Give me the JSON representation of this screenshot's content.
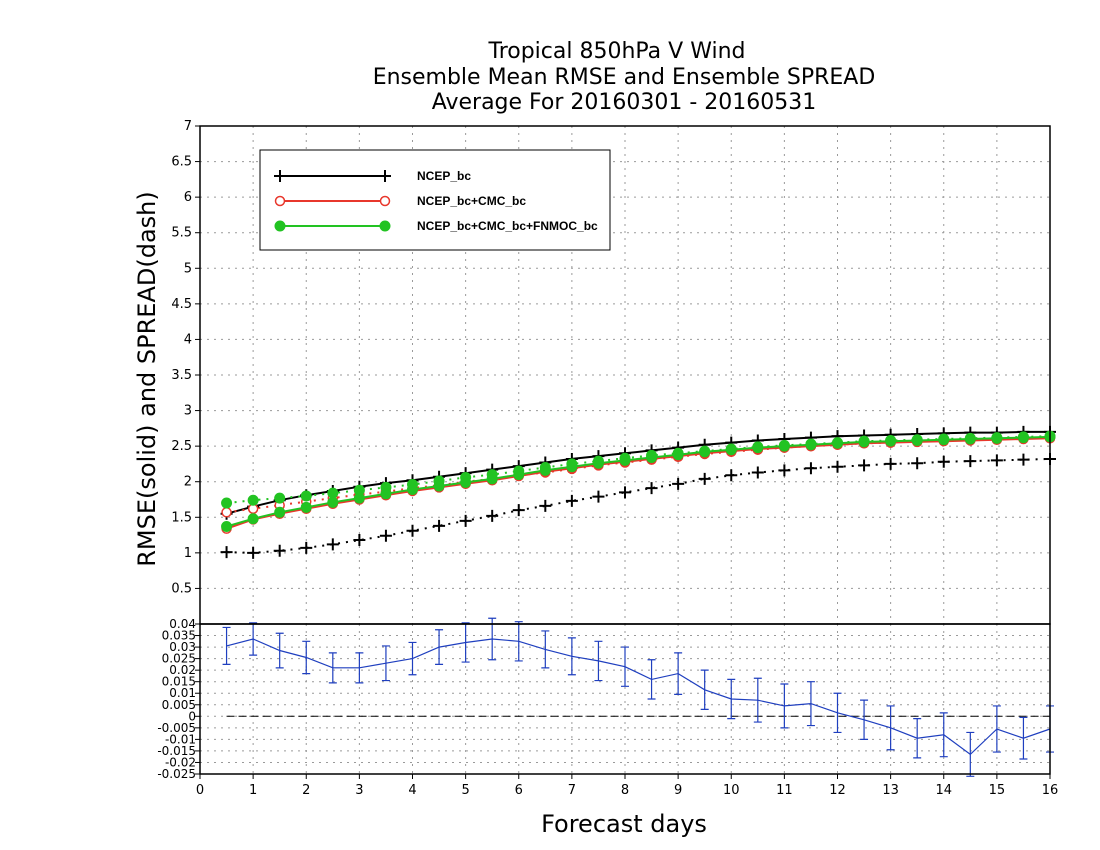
{
  "chart_data": [
    {
      "type": "line",
      "title": [
        "Tropical 850hPa V Wind",
        "Ensemble Mean RMSE and Ensemble SPREAD",
        "Average For 20160301 - 20160531"
      ],
      "ylabel": "RMSE(solid)  and  SPREAD(dash)",
      "ylim": [
        0,
        7
      ],
      "yticks": [
        "0.5",
        "1",
        "1.5",
        "2",
        "2.5",
        "3",
        "3.5",
        "4",
        "4.5",
        "5",
        "5.5",
        "6",
        "6.5",
        "7"
      ],
      "ytick_values": [
        0.5,
        1,
        1.5,
        2,
        2.5,
        3,
        3.5,
        4,
        4.5,
        5,
        5.5,
        6,
        6.5,
        7
      ],
      "xlim": [
        0,
        16
      ],
      "grid": true,
      "legend_position": "top-left",
      "x": [
        0.5,
        1,
        1.5,
        2,
        2.5,
        3,
        3.5,
        4,
        4.5,
        5,
        5.5,
        6,
        6.5,
        7,
        7.5,
        8,
        8.5,
        9,
        9.5,
        10,
        10.5,
        11,
        11.5,
        12,
        12.5,
        13,
        13.5,
        14,
        14.5,
        15,
        15.5,
        16
      ],
      "series": [
        {
          "name": "NCEP_bc",
          "color": "#000000",
          "marker": "plus",
          "rmse": [
            1.55,
            1.65,
            1.74,
            1.81,
            1.87,
            1.93,
            1.98,
            2.02,
            2.07,
            2.12,
            2.17,
            2.22,
            2.27,
            2.32,
            2.36,
            2.4,
            2.44,
            2.48,
            2.52,
            2.55,
            2.58,
            2.6,
            2.62,
            2.64,
            2.65,
            2.66,
            2.67,
            2.68,
            2.69,
            2.69,
            2.7,
            2.7
          ],
          "spread": [
            1.01,
            1.0,
            1.03,
            1.07,
            1.12,
            1.18,
            1.24,
            1.31,
            1.38,
            1.45,
            1.52,
            1.6,
            1.66,
            1.73,
            1.79,
            1.85,
            1.91,
            1.97,
            2.04,
            2.09,
            2.13,
            2.16,
            2.19,
            2.21,
            2.23,
            2.25,
            2.26,
            2.28,
            2.29,
            2.3,
            2.31,
            2.32
          ]
        },
        {
          "name": "NCEP_bc+CMC_bc",
          "color": "#e8372c",
          "marker": "open-circle",
          "rmse": [
            1.34,
            1.47,
            1.55,
            1.62,
            1.69,
            1.75,
            1.81,
            1.87,
            1.92,
            1.97,
            2.02,
            2.08,
            2.14,
            2.19,
            2.24,
            2.28,
            2.32,
            2.36,
            2.4,
            2.43,
            2.46,
            2.48,
            2.5,
            2.52,
            2.54,
            2.55,
            2.56,
            2.57,
            2.58,
            2.59,
            2.6,
            2.61
          ],
          "spread": [
            1.57,
            1.62,
            1.67,
            1.72,
            1.77,
            1.82,
            1.86,
            1.91,
            1.95,
            2.0,
            2.04,
            2.09,
            2.13,
            2.18,
            2.23,
            2.27,
            2.31,
            2.35,
            2.39,
            2.42,
            2.45,
            2.48,
            2.5,
            2.52,
            2.54,
            2.55,
            2.57,
            2.58,
            2.59,
            2.6,
            2.61,
            2.62
          ]
        },
        {
          "name": "NCEP_bc+CMC_bc+FNMOC_bc",
          "color": "#22c322",
          "marker": "filled-circle",
          "rmse": [
            1.37,
            1.48,
            1.57,
            1.64,
            1.71,
            1.77,
            1.83,
            1.89,
            1.94,
            1.99,
            2.04,
            2.1,
            2.16,
            2.21,
            2.26,
            2.3,
            2.34,
            2.38,
            2.42,
            2.45,
            2.48,
            2.5,
            2.52,
            2.54,
            2.56,
            2.57,
            2.58,
            2.59,
            2.6,
            2.61,
            2.62,
            2.63
          ],
          "spread": [
            1.7,
            1.74,
            1.77,
            1.8,
            1.84,
            1.88,
            1.92,
            1.96,
            2.01,
            2.06,
            2.1,
            2.15,
            2.2,
            2.25,
            2.29,
            2.33,
            2.37,
            2.4,
            2.43,
            2.46,
            2.49,
            2.51,
            2.53,
            2.55,
            2.57,
            2.58,
            2.59,
            2.6,
            2.61,
            2.62,
            2.63,
            2.64
          ]
        }
      ]
    },
    {
      "type": "line",
      "ylim": [
        -0.025,
        0.04
      ],
      "yticks": [
        "-0.025",
        "-0.02",
        "-0.015",
        "-0.01",
        "-0.005",
        "0",
        "0.005",
        "0.01",
        "0.015",
        "0.02",
        "0.025",
        "0.03",
        "0.035",
        "0.04"
      ],
      "ytick_values": [
        -0.025,
        -0.02,
        -0.015,
        -0.01,
        -0.005,
        0,
        0.005,
        0.01,
        0.015,
        0.02,
        0.025,
        0.03,
        0.035,
        0.04
      ],
      "xlim": [
        0,
        16
      ],
      "xticks": [
        "0",
        "1",
        "2",
        "3",
        "4",
        "5",
        "6",
        "7",
        "8",
        "9",
        "10",
        "11",
        "12",
        "13",
        "14",
        "15",
        "16"
      ],
      "xtick_values": [
        0,
        1,
        2,
        3,
        4,
        5,
        6,
        7,
        8,
        9,
        10,
        11,
        12,
        13,
        14,
        15,
        16
      ],
      "xlabel": "Forecast days",
      "grid": true,
      "series": [
        {
          "color": "#1f3fbf",
          "x": [
            0.5,
            1,
            1.5,
            2,
            2.5,
            3,
            3.5,
            4,
            4.5,
            5,
            5.5,
            6,
            6.5,
            7,
            7.5,
            8,
            8.5,
            9,
            9.5,
            10,
            10.5,
            11,
            11.5,
            12,
            12.5,
            13,
            13.5,
            14,
            14.5,
            15,
            15.5,
            16
          ],
          "values": [
            0.0305,
            0.0335,
            0.0285,
            0.0255,
            0.021,
            0.021,
            0.023,
            0.025,
            0.03,
            0.032,
            0.0335,
            0.0325,
            0.029,
            0.026,
            0.024,
            0.0215,
            0.016,
            0.0185,
            0.0115,
            0.0075,
            0.007,
            0.0045,
            0.0055,
            0.0015,
            -0.0015,
            -0.005,
            -0.0095,
            -0.008,
            -0.0165,
            -0.0055,
            -0.0095,
            -0.0055
          ],
          "err": [
            0.008,
            0.007,
            0.0075,
            0.007,
            0.0065,
            0.0065,
            0.0075,
            0.007,
            0.0075,
            0.0085,
            0.009,
            0.0085,
            0.008,
            0.008,
            0.0085,
            0.0085,
            0.0085,
            0.009,
            0.0085,
            0.0085,
            0.0095,
            0.0095,
            0.0095,
            0.0085,
            0.0085,
            0.0095,
            0.0085,
            0.0095,
            0.0095,
            0.01,
            0.009,
            0.01
          ]
        }
      ],
      "reference_line": 0
    }
  ]
}
